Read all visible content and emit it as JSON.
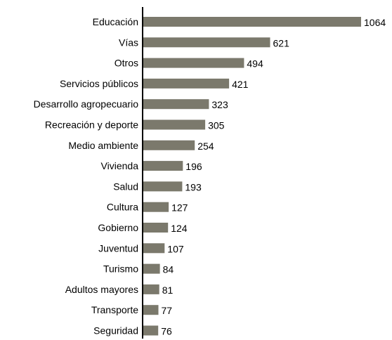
{
  "chart_data": {
    "type": "bar",
    "orientation": "horizontal",
    "categories": [
      "Educación",
      "Vías",
      "Otros",
      "Servicios  públicos",
      "Desarrollo agropecuario",
      "Recreación y deporte",
      "Medio ambiente",
      "Vivienda",
      "Salud",
      "Cultura",
      "Gobierno",
      "Juventud",
      "Turismo",
      "Adultos mayores",
      "Transporte",
      "Seguridad"
    ],
    "values": [
      1064,
      621,
      494,
      421,
      323,
      305,
      254,
      196,
      193,
      127,
      124,
      107,
      84,
      81,
      77,
      76
    ],
    "data_labels": true,
    "grid": false,
    "legend": "none",
    "bar_color": "#7b796c",
    "axis_color": "#000000"
  }
}
